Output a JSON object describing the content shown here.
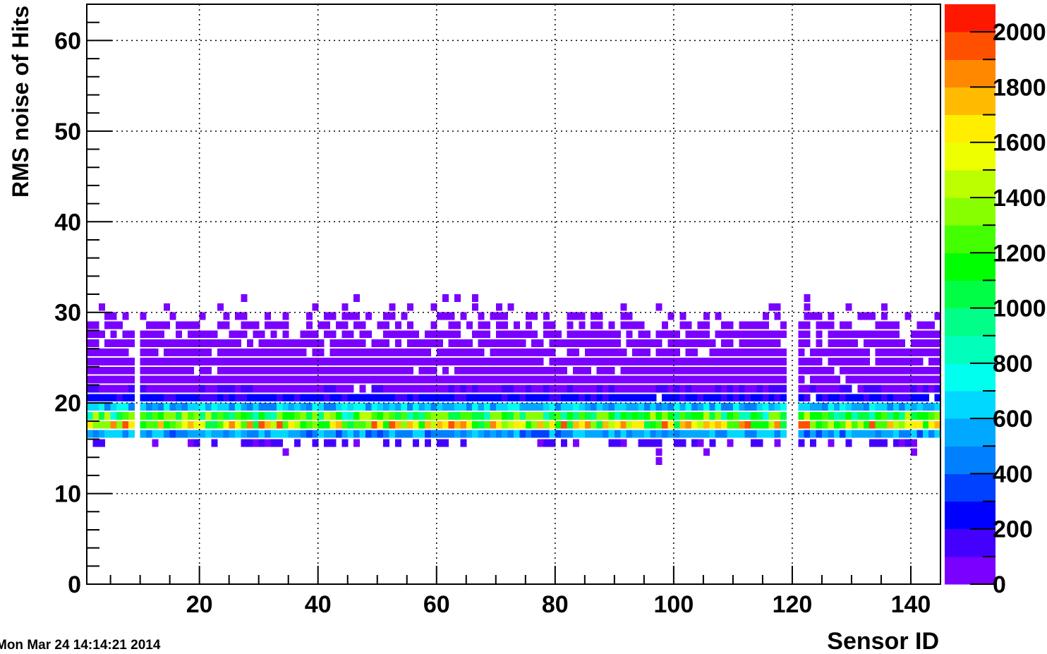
{
  "chart_data": {
    "type": "heatmap",
    "title": "",
    "xlabel": "Sensor ID",
    "ylabel": "RMS noise of Hits",
    "footer_timestamp": "Mon Mar 24 14:14:21 2014",
    "xlim": [
      1,
      145
    ],
    "ylim": [
      0,
      64
    ],
    "x_bin_width": 1,
    "y_bin_width": 1,
    "x_ticks": [
      20,
      40,
      60,
      80,
      100,
      120,
      140
    ],
    "y_ticks": [
      0,
      10,
      20,
      30,
      40,
      50,
      60
    ],
    "grid": true,
    "color_scale": {
      "zlim": [
        0,
        2100
      ],
      "ticks": [
        0,
        200,
        400,
        600,
        800,
        1000,
        1200,
        1400,
        1600,
        1800,
        2000
      ],
      "tick_labels": [
        "0",
        "200",
        "400",
        "600",
        "800",
        "1000",
        "1200",
        "1400",
        "1600",
        "1800",
        "2000"
      ],
      "palette": [
        "#7a00ff",
        "#4400ff",
        "#0000ff",
        "#0040ff",
        "#0080ff",
        "#00a8ff",
        "#00d8ff",
        "#00ffee",
        "#00ffbb",
        "#00ff88",
        "#00ff44",
        "#00ff00",
        "#44ff00",
        "#88ff00",
        "#bbff00",
        "#eeff00",
        "#ffee00",
        "#ffbb00",
        "#ff8800",
        "#ff5000",
        "#ff1800"
      ]
    },
    "row_profile": {
      "y_bins": [
        15,
        16,
        17,
        18,
        19,
        20,
        21,
        22,
        23,
        24,
        25,
        26,
        27,
        28,
        29,
        30
      ],
      "typical_counts": [
        120,
        520,
        1500,
        1100,
        600,
        220,
        90,
        70,
        60,
        50,
        40,
        30,
        25,
        15,
        8,
        3
      ],
      "occupancy": [
        0.45,
        1,
        1,
        1,
        1,
        0.97,
        0.97,
        0.97,
        0.96,
        0.95,
        0.9,
        0.88,
        0.8,
        0.55,
        0.35,
        0.12
      ]
    },
    "gap_sensors": [
      9,
      119,
      120
    ],
    "isolated_bins": [
      {
        "x": 34,
        "y": 14,
        "count": 10
      },
      {
        "x": 97,
        "y": 14,
        "count": 10
      },
      {
        "x": 97,
        "y": 13,
        "count": 10
      },
      {
        "x": 105,
        "y": 14,
        "count": 10
      },
      {
        "x": 140,
        "y": 14,
        "count": 10
      },
      {
        "x": 27,
        "y": 31,
        "count": 5
      },
      {
        "x": 46,
        "y": 31,
        "count": 5
      },
      {
        "x": 61,
        "y": 31,
        "count": 5
      },
      {
        "x": 63,
        "y": 31,
        "count": 5
      },
      {
        "x": 66,
        "y": 31,
        "count": 5
      },
      {
        "x": 122,
        "y": 31,
        "count": 5
      }
    ]
  }
}
